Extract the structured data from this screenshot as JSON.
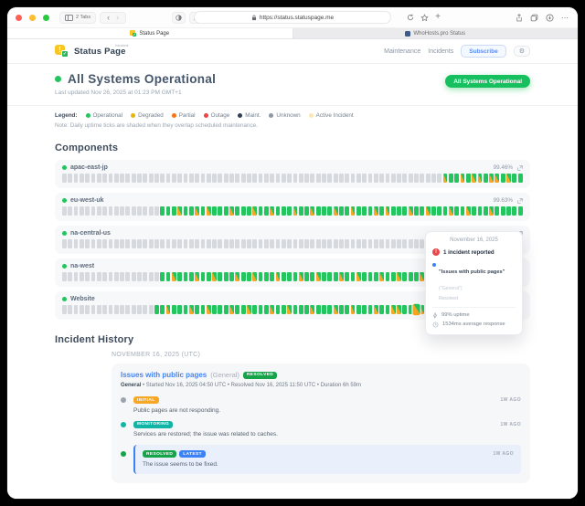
{
  "browser": {
    "tabs_button_label": "2 Tabs",
    "url": "https://status.statuspage.me",
    "tabs": [
      {
        "label": "Status Page"
      },
      {
        "label": "WhoHosts.pro Status"
      }
    ]
  },
  "header": {
    "brand": "Status Page",
    "brand_superscript": "hosted",
    "nav_maintenance": "Maintenance",
    "nav_incidents": "Incidents",
    "subscribe_label": "Subscribe"
  },
  "status": {
    "title": "All Systems Operational",
    "last_updated": "Last updated Nov 26, 2025 at 01:23 PM GMT+1",
    "badge": "All Systems Operational"
  },
  "legend": {
    "label": "Legend:",
    "items": [
      {
        "label": "Operational",
        "color": "#22c55e"
      },
      {
        "label": "Degraded",
        "color": "#eab308"
      },
      {
        "label": "Partial",
        "color": "#f97316"
      },
      {
        "label": "Outage",
        "color": "#ef4444"
      },
      {
        "label": "Maint.",
        "color": "#334155"
      },
      {
        "label": "Unknown",
        "color": "#8d98a5"
      },
      {
        "label": "Active Incident",
        "color": "#fbe7b6"
      }
    ],
    "note": "Note: Daily uptime ticks are shaded when they overlap scheduled maintenance."
  },
  "components": {
    "title": "Components",
    "items": [
      {
        "name": "apac-east-jp",
        "uptime": "99.46%",
        "lead_gray": 66,
        "tail": "MGGMGMMGMMGMGG"
      },
      {
        "name": "eu-west-uk",
        "uptime": "99.63%",
        "lead_gray": 17,
        "tail": "GGGMGGMGMGGGMGGGMGGMGGGMGGMGGGMGGMGGGMGMGGGMGGMGGGMGGMGGGMGGGGG"
      },
      {
        "name": "na-central-us",
        "uptime": "",
        "lead_gray": 77,
        "tail": "GGG"
      },
      {
        "name": "na-west",
        "uptime": "",
        "lead_gray": 17,
        "tail": "GGMGGGMGGMGGGMGGMGGGMGGGMGGMGGGMGGMGGGMGGMGGGMGGGMGGMGGGMGGMGGG"
      },
      {
        "name": "Website",
        "uptime": "",
        "lead_gray": 16,
        "tail": "GGMGGGMGGMGGGMGGMGGGMGGMGGGMGGGMGGMGGGMGGMMGGHMGMMGGMGGGMGGGGGGG"
      }
    ]
  },
  "tooltip": {
    "date": "November 16, 2025",
    "alert_glyph": "!",
    "incident_count": "1 incident reported",
    "incident_title": "\"Issues with public pages\"",
    "incident_scope": "(\"General\")",
    "incident_status": "Resolved",
    "uptime": "99% uptime",
    "response": "1534ms average response"
  },
  "incident_history": {
    "title": "Incident History",
    "date_heading": "NOVEMBER 16, 2025",
    "date_suffix": "(UTC)",
    "incident": {
      "title": "Issues with public pages",
      "scope": "(General)",
      "status_badge": "RESOLVED",
      "status_badge_color": "#17a34a",
      "meta_bold": "General",
      "meta_rest": " • Started Nov 16, 2025 04:50 UTC • Resolved Nov 16, 2025 11:50 UTC • Duration 6h 59m",
      "updates": [
        {
          "badges": [
            {
              "label": "INITIAL",
              "color": "#f6a723"
            }
          ],
          "dot": "#9ca3af",
          "time": "1W AGO",
          "text": "Public pages are not responding.",
          "highlight": false
        },
        {
          "badges": [
            {
              "label": "MONITORING",
              "color": "#12b5a5"
            }
          ],
          "dot": "#12b5a5",
          "time": "1W AGO",
          "text": "Services are restored; the issue was related to caches.",
          "highlight": false
        },
        {
          "badges": [
            {
              "label": "RESOLVED",
              "color": "#17a34a"
            },
            {
              "label": "LATEST",
              "color": "#3b82f6"
            }
          ],
          "dot": "#17a34a",
          "time": "1W AGO",
          "text": "The issue seems to be fixed.",
          "highlight": true
        }
      ]
    }
  }
}
